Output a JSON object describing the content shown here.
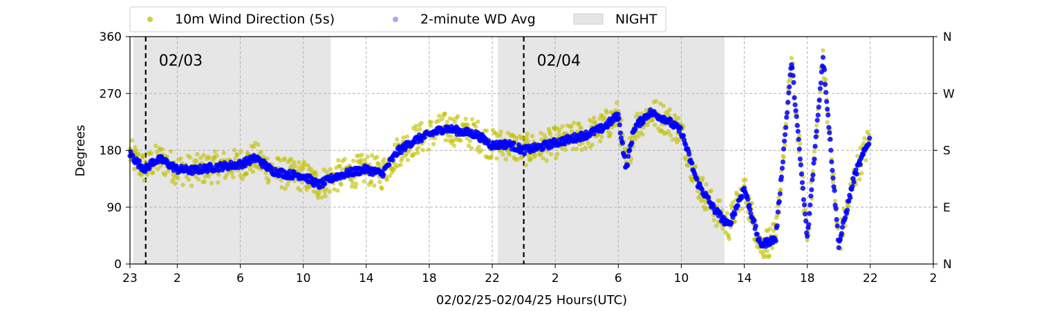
{
  "chart_data": {
    "type": "scatter",
    "title": "",
    "xlabel": "02/02/25-02/04/25  Hours(UTC)",
    "ylabel": "Degrees",
    "x_unit": "hours (UTC) from 2025-02-02 23:00",
    "xlim": [
      0,
      51
    ],
    "ylim": [
      0,
      360
    ],
    "x_tick_values": [
      0,
      3,
      7,
      11,
      15,
      19,
      23,
      27,
      31,
      35,
      39,
      43,
      47,
      51
    ],
    "x_tick_labels": [
      "23",
      "2",
      "6",
      "10",
      "14",
      "18",
      "22",
      "2",
      "6",
      "10",
      "14",
      "18",
      "22",
      "2"
    ],
    "y_ticks": [
      0,
      90,
      180,
      270,
      360
    ],
    "y_tick_labels": [
      "0",
      "90",
      "180",
      "270",
      "360"
    ],
    "right_axis_labels": [
      "N",
      "E",
      "S",
      "W",
      "N"
    ],
    "grid": true,
    "legend_position": "top-left, above plot",
    "legend": [
      {
        "name": "10m Wind Direction (5s)",
        "color": "#bfbf00",
        "marker": "dot"
      },
      {
        "name": "2-minute WD Avg",
        "color": "#0000ff",
        "marker": "dot"
      },
      {
        "name": "NIGHT",
        "color": "#e6e6e6",
        "marker": "patch"
      }
    ],
    "night_periods": [
      [
        0.2,
        12.75
      ],
      [
        23.35,
        37.75
      ]
    ],
    "day_markers": [
      {
        "x": 1,
        "label": "02/03"
      },
      {
        "x": 25,
        "label": "02/04"
      }
    ],
    "series": [
      {
        "name": "10m Wind Direction (5s)",
        "color": "#bfbf00",
        "spread": 25,
        "x": [
          0,
          0.5,
          1,
          1.5,
          2,
          3,
          4,
          5,
          6,
          7,
          8,
          9,
          10,
          11,
          12,
          13,
          14,
          15,
          16,
          17,
          18,
          19,
          20,
          21,
          22,
          23,
          24,
          25,
          26,
          27,
          28,
          29,
          30,
          31,
          31.5,
          32,
          33,
          34,
          35,
          36,
          37,
          38,
          39,
          40,
          41,
          42,
          43,
          44,
          45,
          46,
          47
        ],
        "y": [
          175,
          160,
          150,
          163,
          165,
          150,
          148,
          152,
          155,
          158,
          168,
          148,
          142,
          140,
          125,
          138,
          145,
          150,
          143,
          178,
          195,
          205,
          215,
          210,
          205,
          188,
          190,
          180,
          185,
          192,
          198,
          205,
          215,
          235,
          150,
          215,
          240,
          230,
          210,
          130,
          90,
          60,
          120,
          30,
          40,
          320,
          40,
          330,
          30,
          140,
          200
        ]
      },
      {
        "name": "2-minute WD Avg",
        "color": "#0000ff",
        "spread": 6,
        "x": [
          0,
          0.5,
          1,
          1.5,
          2,
          3,
          4,
          5,
          6,
          7,
          8,
          9,
          10,
          11,
          12,
          13,
          14,
          15,
          16,
          17,
          18,
          19,
          20,
          21,
          22,
          23,
          24,
          25,
          26,
          27,
          28,
          29,
          30,
          31,
          31.5,
          32,
          33,
          34,
          35,
          36,
          37,
          38,
          39,
          40,
          41,
          42,
          43,
          44,
          45,
          46,
          47
        ],
        "y": [
          175,
          160,
          150,
          163,
          165,
          150,
          148,
          152,
          155,
          158,
          168,
          148,
          142,
          140,
          125,
          138,
          145,
          150,
          143,
          178,
          195,
          205,
          215,
          210,
          205,
          188,
          190,
          180,
          185,
          192,
          198,
          205,
          215,
          235,
          150,
          215,
          240,
          230,
          210,
          130,
          90,
          60,
          120,
          30,
          40,
          320,
          40,
          330,
          30,
          140,
          200
        ]
      }
    ]
  }
}
